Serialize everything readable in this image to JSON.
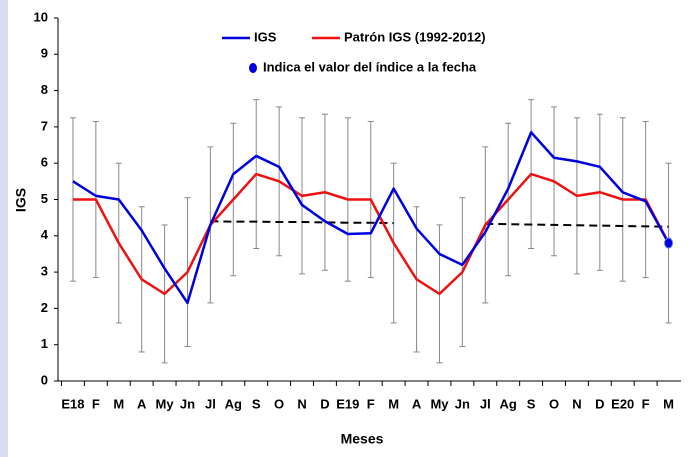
{
  "chart_data": {
    "type": "line",
    "x_label": "Meses",
    "y_label": "IGS",
    "categories": [
      "E18",
      "F",
      "M",
      "A",
      "My",
      "Jn",
      "Jl",
      "Ag",
      "S",
      "O",
      "N",
      "D",
      "E19",
      "F",
      "M",
      "A",
      "My",
      "Jn",
      "Jl",
      "Ag",
      "S",
      "O",
      "N",
      "D",
      "E20",
      "F",
      "M"
    ],
    "ylim": [
      0,
      10
    ],
    "yticks": [
      0,
      1,
      2,
      3,
      4,
      5,
      6,
      7,
      8,
      9,
      10
    ],
    "series": [
      {
        "name": "IGS",
        "color": "#0000dd",
        "values": [
          5.5,
          5.1,
          5.0,
          4.15,
          3.1,
          2.15,
          4.3,
          5.7,
          6.2,
          5.9,
          4.85,
          4.4,
          4.05,
          4.07,
          5.3,
          4.2,
          3.5,
          3.2,
          4.1,
          5.3,
          6.85,
          6.15,
          6.05,
          5.9,
          5.2,
          4.95,
          3.8
        ]
      },
      {
        "name": "Patrón IGS (1992-2012)",
        "color": "#ee1111",
        "values": [
          5.0,
          5.0,
          3.8,
          2.8,
          2.4,
          3.0,
          4.3,
          5.0,
          5.7,
          5.5,
          5.1,
          5.2,
          5.0,
          5.0,
          3.8,
          2.8,
          2.4,
          3.0,
          4.3,
          5.0,
          5.7,
          5.5,
          5.1,
          5.2,
          5.0,
          5.0,
          3.8
        ],
        "errors": [
          2.25,
          2.15,
          2.2,
          2.0,
          1.9,
          2.05,
          2.15,
          2.1,
          2.05,
          2.05,
          2.15,
          2.15,
          2.25,
          2.15,
          2.2,
          2.0,
          1.9,
          2.05,
          2.15,
          2.1,
          2.05,
          2.05,
          2.15,
          2.15,
          2.25,
          2.15,
          2.2
        ],
        "error_color": "#888888"
      },
      {
        "color": "#000000",
        "dashed": true,
        "values": [
          null,
          null,
          null,
          null,
          null,
          null,
          4.4,
          4.39,
          4.39,
          4.38,
          4.38,
          4.37,
          4.36,
          4.36,
          4.35,
          null,
          null,
          null,
          4.33,
          4.32,
          4.31,
          4.3,
          4.29,
          4.28,
          4.27,
          4.26,
          4.25
        ]
      }
    ],
    "current_marker": {
      "series": 0,
      "index": 26,
      "color": "#0000dd",
      "label": "Indica el valor del índice a la fecha"
    }
  }
}
